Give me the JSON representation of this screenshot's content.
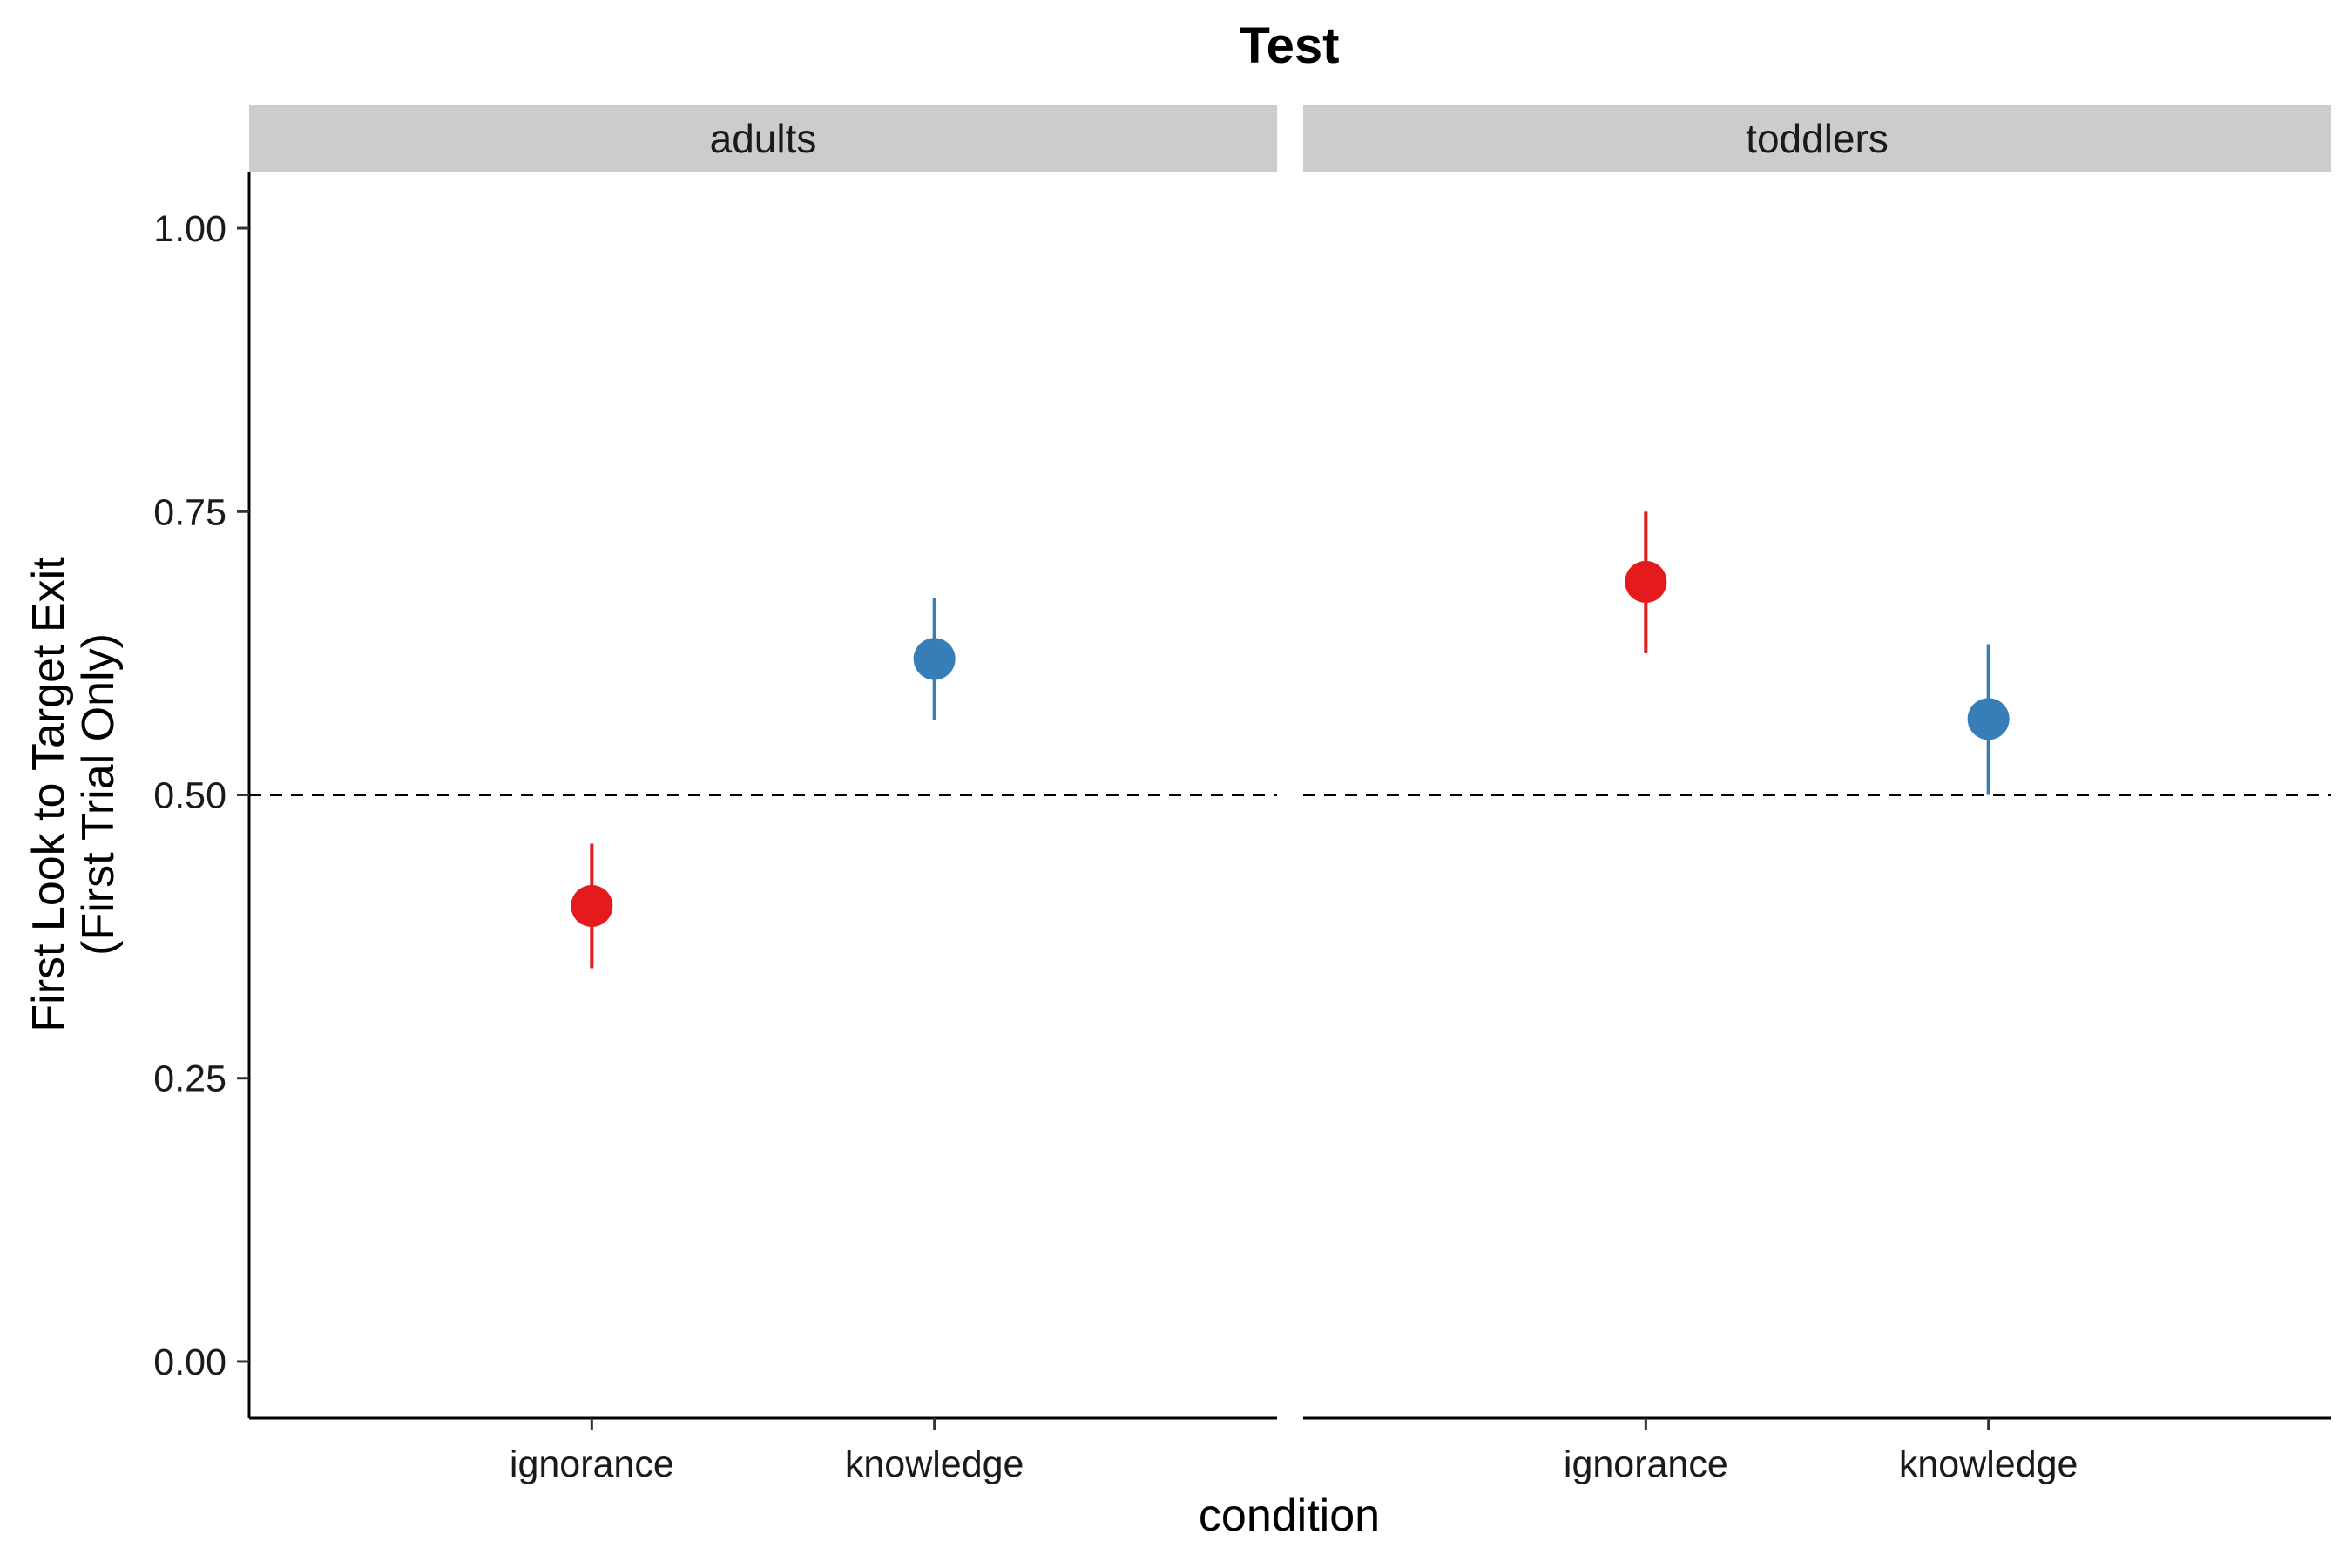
{
  "chart_data": {
    "type": "scatter",
    "title": "Test",
    "xlabel": "condition",
    "ylabel_lines": [
      "First Look to Target Exit",
      "(First Trial Only)"
    ],
    "ylim": [
      -0.05,
      1.05
    ],
    "y_ticks": [
      "0.00",
      "0.25",
      "0.50",
      "0.75",
      "1.00"
    ],
    "y_tick_values": [
      0,
      0.25,
      0.5,
      0.75,
      1.0
    ],
    "reference_line": {
      "y": 0.5,
      "style": "dashed"
    },
    "categories": [
      "ignorance",
      "knowledge"
    ],
    "facets": [
      {
        "label": "adults",
        "points": [
          {
            "category": "ignorance",
            "y": 0.402,
            "ymin": 0.347,
            "ymax": 0.457,
            "color": "#E41A1C"
          },
          {
            "category": "knowledge",
            "y": 0.62,
            "ymin": 0.566,
            "ymax": 0.674,
            "color": "#377EB8"
          }
        ]
      },
      {
        "label": "toddlers",
        "points": [
          {
            "category": "ignorance",
            "y": 0.688,
            "ymin": 0.625,
            "ymax": 0.75,
            "color": "#E41A1C"
          },
          {
            "category": "knowledge",
            "y": 0.567,
            "ymin": 0.5,
            "ymax": 0.633,
            "color": "#377EB8"
          }
        ]
      }
    ],
    "grid": false,
    "legend": "none"
  }
}
